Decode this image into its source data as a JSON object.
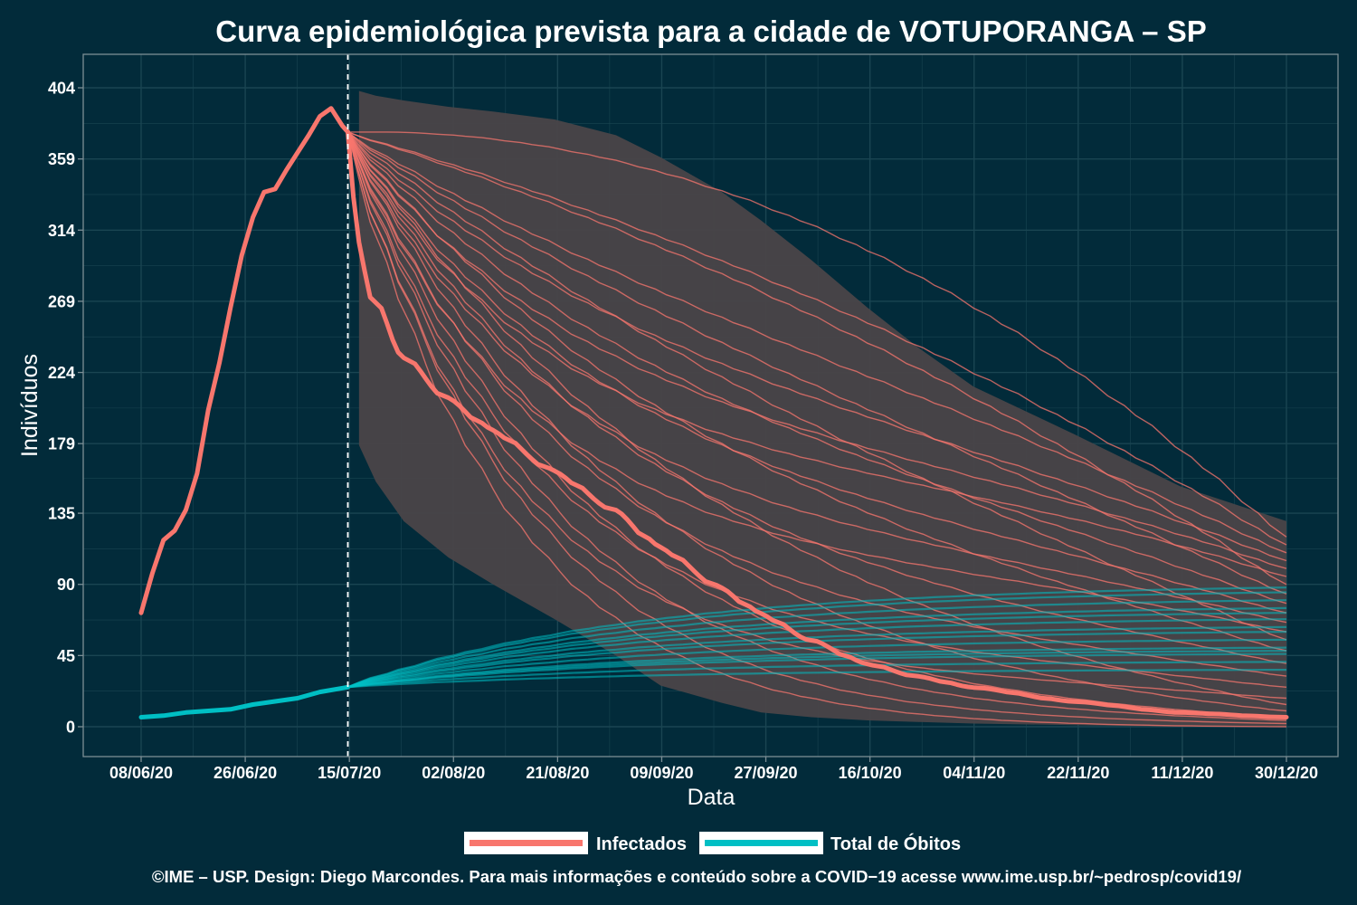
{
  "chart_data": {
    "type": "line",
    "title": "Curva epidemiológica prevista para a cidade de VOTUPORANGA – SP",
    "xlabel": "Data",
    "ylabel": "Indivíduos",
    "caption": "©IME – USP. Design: Diego Marcondes. Para mais informações e conteúdo sobre a COVID−19 acesse www.ime.usp.br/~pedrosp/covid19/",
    "x_ticks": [
      "08/06/20",
      "26/06/20",
      "15/07/20",
      "02/08/20",
      "21/08/20",
      "09/09/20",
      "27/09/20",
      "16/10/20",
      "04/11/20",
      "22/11/20",
      "11/12/20",
      "30/12/20"
    ],
    "y_ticks": [
      "0",
      "45",
      "90",
      "135",
      "179",
      "224",
      "269",
      "314",
      "359",
      "404"
    ],
    "y_tick_values": [
      0,
      45,
      90,
      135,
      179,
      224,
      269,
      314,
      359,
      404
    ],
    "xlim": [
      "2020-06-08",
      "2020-12-30"
    ],
    "ylim": [
      0,
      404
    ],
    "forecast_start": "2020-07-15",
    "grid": true,
    "legend_position": "bottom",
    "colors": {
      "background": "#022b3a",
      "infectados": "#f8766d",
      "obitos": "#00bfc4",
      "band": "#4a4548",
      "grid": "#1a4552",
      "text": "#ffffff"
    },
    "series": [
      {
        "name": "Infectados",
        "color": "#f8766d",
        "observed": {
          "x": [
            "2020-06-08",
            "2020-06-10",
            "2020-06-12",
            "2020-06-14",
            "2020-06-16",
            "2020-06-18",
            "2020-06-20",
            "2020-06-22",
            "2020-06-24",
            "2020-06-26",
            "2020-06-28",
            "2020-06-30",
            "2020-07-02",
            "2020-07-04",
            "2020-07-06",
            "2020-07-08",
            "2020-07-10",
            "2020-07-12",
            "2020-07-14",
            "2020-07-15"
          ],
          "y": [
            72,
            97,
            118,
            124,
            137,
            160,
            200,
            230,
            265,
            298,
            322,
            338,
            340,
            352,
            363,
            374,
            386,
            391,
            380,
            376
          ]
        },
        "forecast_median": {
          "x": [
            "2020-07-15",
            "2020-07-17",
            "2020-07-20",
            "2020-07-25",
            "2020-08-02",
            "2020-08-10",
            "2020-08-21",
            "2020-09-01",
            "2020-09-09",
            "2020-09-20",
            "2020-09-27",
            "2020-10-06",
            "2020-10-16",
            "2020-10-25",
            "2020-11-04",
            "2020-11-22",
            "2020-12-11",
            "2020-12-30"
          ],
          "y": [
            376,
            310,
            270,
            235,
            208,
            188,
            162,
            137,
            114,
            88,
            72,
            55,
            40,
            32,
            25,
            16,
            9,
            6
          ]
        }
      },
      {
        "name": "Total de Óbitos",
        "color": "#00bfc4",
        "observed": {
          "x": [
            "2020-06-08",
            "2020-06-12",
            "2020-06-16",
            "2020-06-20",
            "2020-06-24",
            "2020-06-28",
            "2020-07-02",
            "2020-07-06",
            "2020-07-10",
            "2020-07-15"
          ],
          "y": [
            6,
            7,
            9,
            10,
            11,
            14,
            16,
            18,
            22,
            25
          ]
        },
        "forecast_endpoints": [
          36,
          41,
          46,
          48,
          50,
          55,
          60,
          63,
          68,
          72,
          75,
          80,
          85,
          88
        ]
      }
    ],
    "infected_band": {
      "x": [
        "2020-07-17",
        "2020-07-20",
        "2020-07-25",
        "2020-08-02",
        "2020-08-10",
        "2020-08-21",
        "2020-09-01",
        "2020-09-09",
        "2020-09-20",
        "2020-09-27",
        "2020-10-06",
        "2020-10-16",
        "2020-10-25",
        "2020-11-04",
        "2020-11-22",
        "2020-12-11",
        "2020-12-30"
      ],
      "lower": [
        178,
        155,
        130,
        107,
        90,
        68,
        45,
        26,
        15,
        9,
        6,
        4,
        3,
        2,
        1,
        0,
        0
      ],
      "upper": [
        402,
        399,
        396,
        392,
        389,
        384,
        374,
        360,
        338,
        320,
        295,
        265,
        240,
        215,
        185,
        152,
        130
      ]
    },
    "infected_scenario_endpoints": [
      0,
      2,
      4,
      6,
      10,
      14,
      18,
      25,
      32,
      40,
      48,
      55,
      60,
      66,
      72,
      78,
      84,
      90,
      95,
      100,
      105,
      110,
      115,
      120
    ]
  }
}
